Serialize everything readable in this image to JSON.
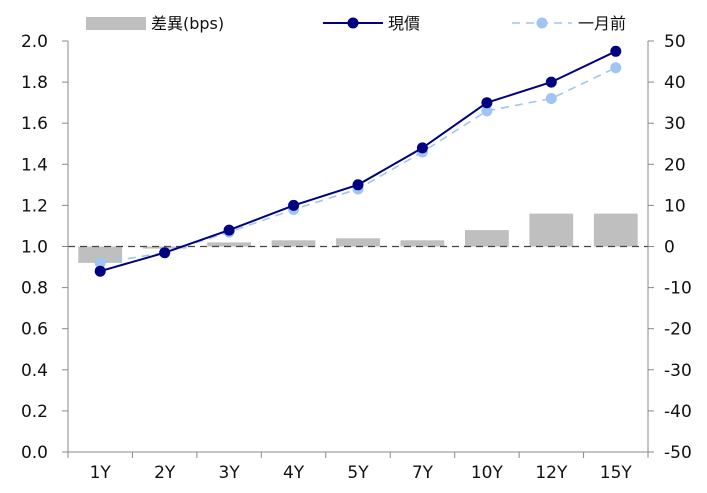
{
  "chart_data": {
    "type": "bar+line",
    "categories": [
      "1Y",
      "2Y",
      "3Y",
      "4Y",
      "5Y",
      "7Y",
      "10Y",
      "12Y",
      "15Y"
    ],
    "series": [
      {
        "name": "差異(bps)",
        "type": "bar",
        "axis": "right",
        "values": [
          -4,
          -0.5,
          1,
          1.5,
          2,
          1.5,
          4,
          8,
          8
        ]
      },
      {
        "name": "現價",
        "type": "line",
        "axis": "left",
        "values": [
          0.88,
          0.97,
          1.08,
          1.2,
          1.3,
          1.48,
          1.7,
          1.8,
          1.95
        ]
      },
      {
        "name": "一月前",
        "type": "line-dashed",
        "axis": "left",
        "values": [
          0.92,
          0.97,
          1.07,
          1.18,
          1.28,
          1.46,
          1.66,
          1.72,
          1.87
        ]
      }
    ],
    "y_left": {
      "min": 0.0,
      "max": 2.0,
      "step": 0.2,
      "ticks": [
        "0.0",
        "0.2",
        "0.4",
        "0.6",
        "0.8",
        "1.0",
        "1.2",
        "1.4",
        "1.6",
        "1.8",
        "2.0"
      ]
    },
    "y_right": {
      "min": -50,
      "max": 50,
      "step": 10,
      "ticks": [
        "-50",
        "-40",
        "-30",
        "-20",
        "-10",
        "0",
        "10",
        "20",
        "30",
        "40",
        "50"
      ]
    },
    "reference_line": {
      "axis": "left",
      "value": 1.0,
      "style": "dashed"
    },
    "legend_placement": "top",
    "grid": false,
    "colors": {
      "bar": "#bfbfbf",
      "current_line": "#000080",
      "prev_line": "#9fc5f0",
      "axis": "#888888",
      "reference": "#444444"
    }
  }
}
